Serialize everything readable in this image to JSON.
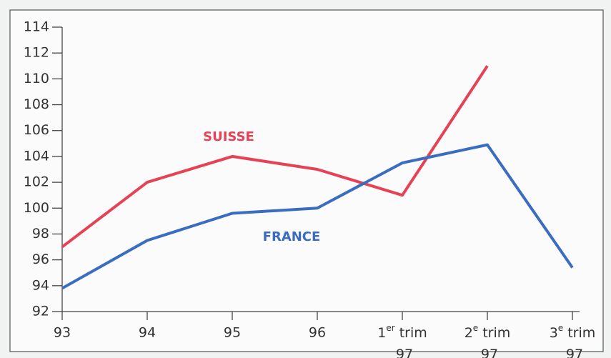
{
  "chart_data": {
    "type": "line",
    "categories": [
      "93",
      "94",
      "95",
      "96",
      "1er trim 97",
      "2e trim 97",
      "3e trim 97"
    ],
    "series": [
      {
        "name": "SUISSE",
        "color": "#e54255",
        "values": [
          97,
          102,
          104,
          103,
          101,
          111,
          null
        ]
      },
      {
        "name": "FRANCE",
        "color": "#3a6cc0",
        "values": [
          93.8,
          97.5,
          99.6,
          100,
          103.5,
          104.9,
          95.4
        ]
      }
    ],
    "ylim": [
      92,
      114
    ],
    "yticks": [
      92,
      94,
      96,
      98,
      100,
      102,
      104,
      106,
      108,
      110,
      112,
      114
    ]
  }
}
